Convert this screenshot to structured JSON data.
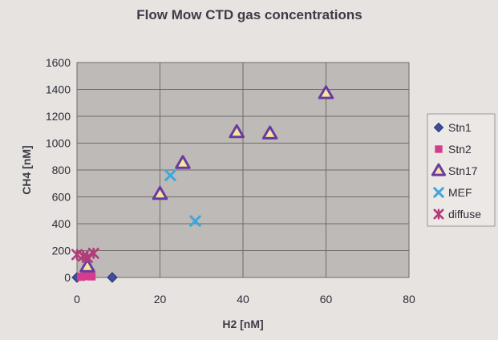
{
  "chart_data": {
    "type": "scatter",
    "title": "Flow Mow CTD gas concentrations",
    "xlabel": "H2 [nM]",
    "ylabel": "CH4 [nM]",
    "xlim": [
      0,
      80
    ],
    "ylim": [
      0,
      1600
    ],
    "x_ticks": [
      "0",
      "20",
      "40",
      "60",
      "80"
    ],
    "y_ticks": [
      "0",
      "200",
      "400",
      "600",
      "800",
      "1000",
      "1200",
      "1400",
      "1600"
    ],
    "grid": true,
    "legend": "right",
    "series": [
      {
        "name": "Stn1",
        "marker": "diamond",
        "color": "#3d4f9c",
        "points": [
          [
            0,
            0
          ],
          [
            8.5,
            0
          ]
        ]
      },
      {
        "name": "Stn2",
        "marker": "square",
        "color": "#d63c8c",
        "points": [
          [
            1,
            5
          ],
          [
            2,
            10
          ],
          [
            3.5,
            8
          ]
        ]
      },
      {
        "name": "Stn17",
        "marker": "triangle",
        "color": "#f2e79c",
        "edge": "#6a3aa0",
        "points": [
          [
            2.5,
            80
          ],
          [
            20,
            620
          ],
          [
            25.5,
            850
          ],
          [
            38.5,
            1080
          ],
          [
            46.5,
            1070
          ],
          [
            60,
            1370
          ]
        ]
      },
      {
        "name": "MEF",
        "marker": "x",
        "color": "#3fa7dc",
        "points": [
          [
            22.5,
            760
          ],
          [
            28.5,
            420
          ]
        ]
      },
      {
        "name": "diffuse",
        "marker": "asterisk",
        "color": "#b23c7a",
        "points": [
          [
            0,
            170
          ],
          [
            1.5,
            160
          ],
          [
            2.5,
            150
          ],
          [
            4,
            180
          ]
        ]
      }
    ]
  }
}
